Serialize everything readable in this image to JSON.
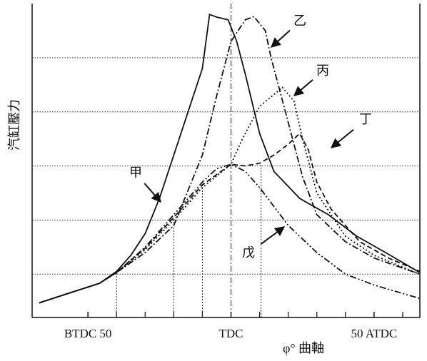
{
  "chart_data": {
    "type": "line",
    "y_label": "汽缸壓力",
    "x_label": "φ°  曲軸",
    "xlim": [
      -69.5,
      66
    ],
    "ylim": [
      0.2,
      6
    ],
    "xticks": [
      {
        "value": -50,
        "label": "BTDC 50"
      },
      {
        "value": 0,
        "label": "TDC"
      },
      {
        "value": 50,
        "label": "50 ATDC"
      }
    ],
    "x_minor_ticks": [
      -40,
      -30,
      -20,
      -10,
      10,
      20,
      30,
      40,
      60
    ],
    "yticks": [
      1,
      2,
      3,
      4,
      5
    ],
    "grid": true,
    "color": "#111111",
    "series": [
      {
        "name": "甲",
        "dash": "solid",
        "x": [
          -67,
          -56,
          -46,
          -40,
          -35,
          -30,
          -25,
          -20,
          -15,
          -10,
          -7.5,
          -5,
          -1,
          2,
          5,
          10,
          15,
          24,
          34,
          44,
          54,
          66
        ],
        "values": [
          0.47,
          0.66,
          0.83,
          1.05,
          1.35,
          1.75,
          2.4,
          3.2,
          4.0,
          4.8,
          5.8,
          5.75,
          5.7,
          5.3,
          4.7,
          3.6,
          2.9,
          2.4,
          2.1,
          1.7,
          1.4,
          1.03
        ]
      },
      {
        "name": "乙",
        "dash": "dashdot",
        "x": [
          -67,
          -56,
          -46,
          -40,
          -30,
          -20,
          -10,
          -5,
          0,
          5,
          8,
          12,
          14,
          20,
          25,
          30,
          40,
          50,
          66
        ],
        "values": [
          0.47,
          0.66,
          0.83,
          1.03,
          1.4,
          1.9,
          3.2,
          4.3,
          5.3,
          5.7,
          5.76,
          5.5,
          5.0,
          3.8,
          2.8,
          2.1,
          1.6,
          1.3,
          1.0
        ]
      },
      {
        "name": "丙",
        "dash": "dotted",
        "x": [
          -67,
          -56,
          -46,
          -40,
          -30,
          -20,
          -10,
          0,
          4,
          10,
          18,
          22,
          25,
          30,
          40,
          50,
          66
        ],
        "values": [
          0.47,
          0.66,
          0.83,
          1.03,
          1.45,
          2.0,
          2.6,
          3.03,
          3.5,
          4.1,
          4.45,
          4.2,
          3.5,
          2.5,
          1.7,
          1.35,
          1.0
        ]
      },
      {
        "name": "丁",
        "dash": "dashed",
        "x": [
          -67,
          -56,
          -46,
          -40,
          -30,
          -20,
          -10,
          0,
          5,
          10,
          15,
          20,
          24,
          27,
          30,
          35,
          45,
          55,
          66
        ],
        "values": [
          0.47,
          0.66,
          0.83,
          1.03,
          1.48,
          2.05,
          2.65,
          3.03,
          3.0,
          3.05,
          3.2,
          3.4,
          3.6,
          3.3,
          2.7,
          2.2,
          1.6,
          1.3,
          1.05
        ]
      },
      {
        "name": "戊",
        "dash": "dashdotdot",
        "x": [
          -67,
          -56,
          -46,
          -40,
          -30,
          -20,
          -10,
          -5,
          0,
          5,
          10,
          20,
          30,
          40,
          50,
          66
        ],
        "values": [
          0.47,
          0.66,
          0.83,
          1.03,
          1.5,
          2.1,
          2.7,
          2.95,
          3.03,
          2.9,
          2.6,
          1.9,
          1.4,
          1.0,
          0.8,
          0.55
        ]
      }
    ]
  }
}
